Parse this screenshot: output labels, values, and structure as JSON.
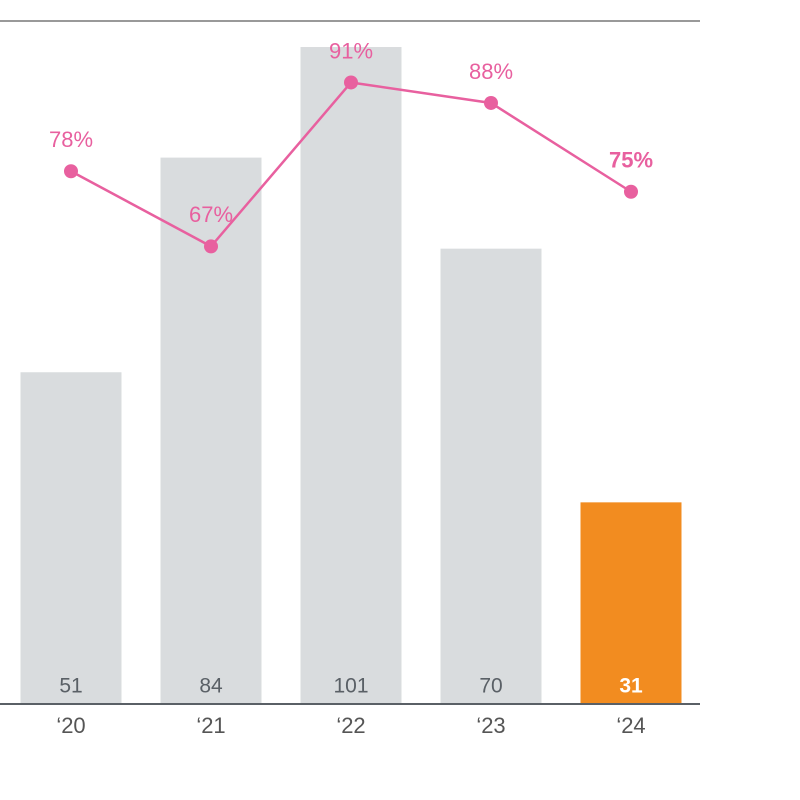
{
  "chart_data": {
    "type": "bar-line",
    "categories": [
      "‘20",
      "‘21",
      "‘22",
      "‘23",
      "‘24"
    ],
    "series": [
      {
        "type": "bar",
        "colors": [
          "#d9dcde",
          "#d9dcde",
          "#d9dcde",
          "#d9dcde",
          "#f28c20"
        ],
        "values": [
          51,
          84,
          101,
          70,
          31
        ]
      },
      {
        "type": "line",
        "axis": "y2",
        "color": "#e8609f",
        "values": [
          78,
          67,
          91,
          88,
          75
        ],
        "value_labels": [
          "78%",
          "67%",
          "91%",
          "88%",
          "75%"
        ]
      }
    ],
    "ylim": [
      0,
      105
    ],
    "y2lim": [
      0,
      100
    ]
  }
}
